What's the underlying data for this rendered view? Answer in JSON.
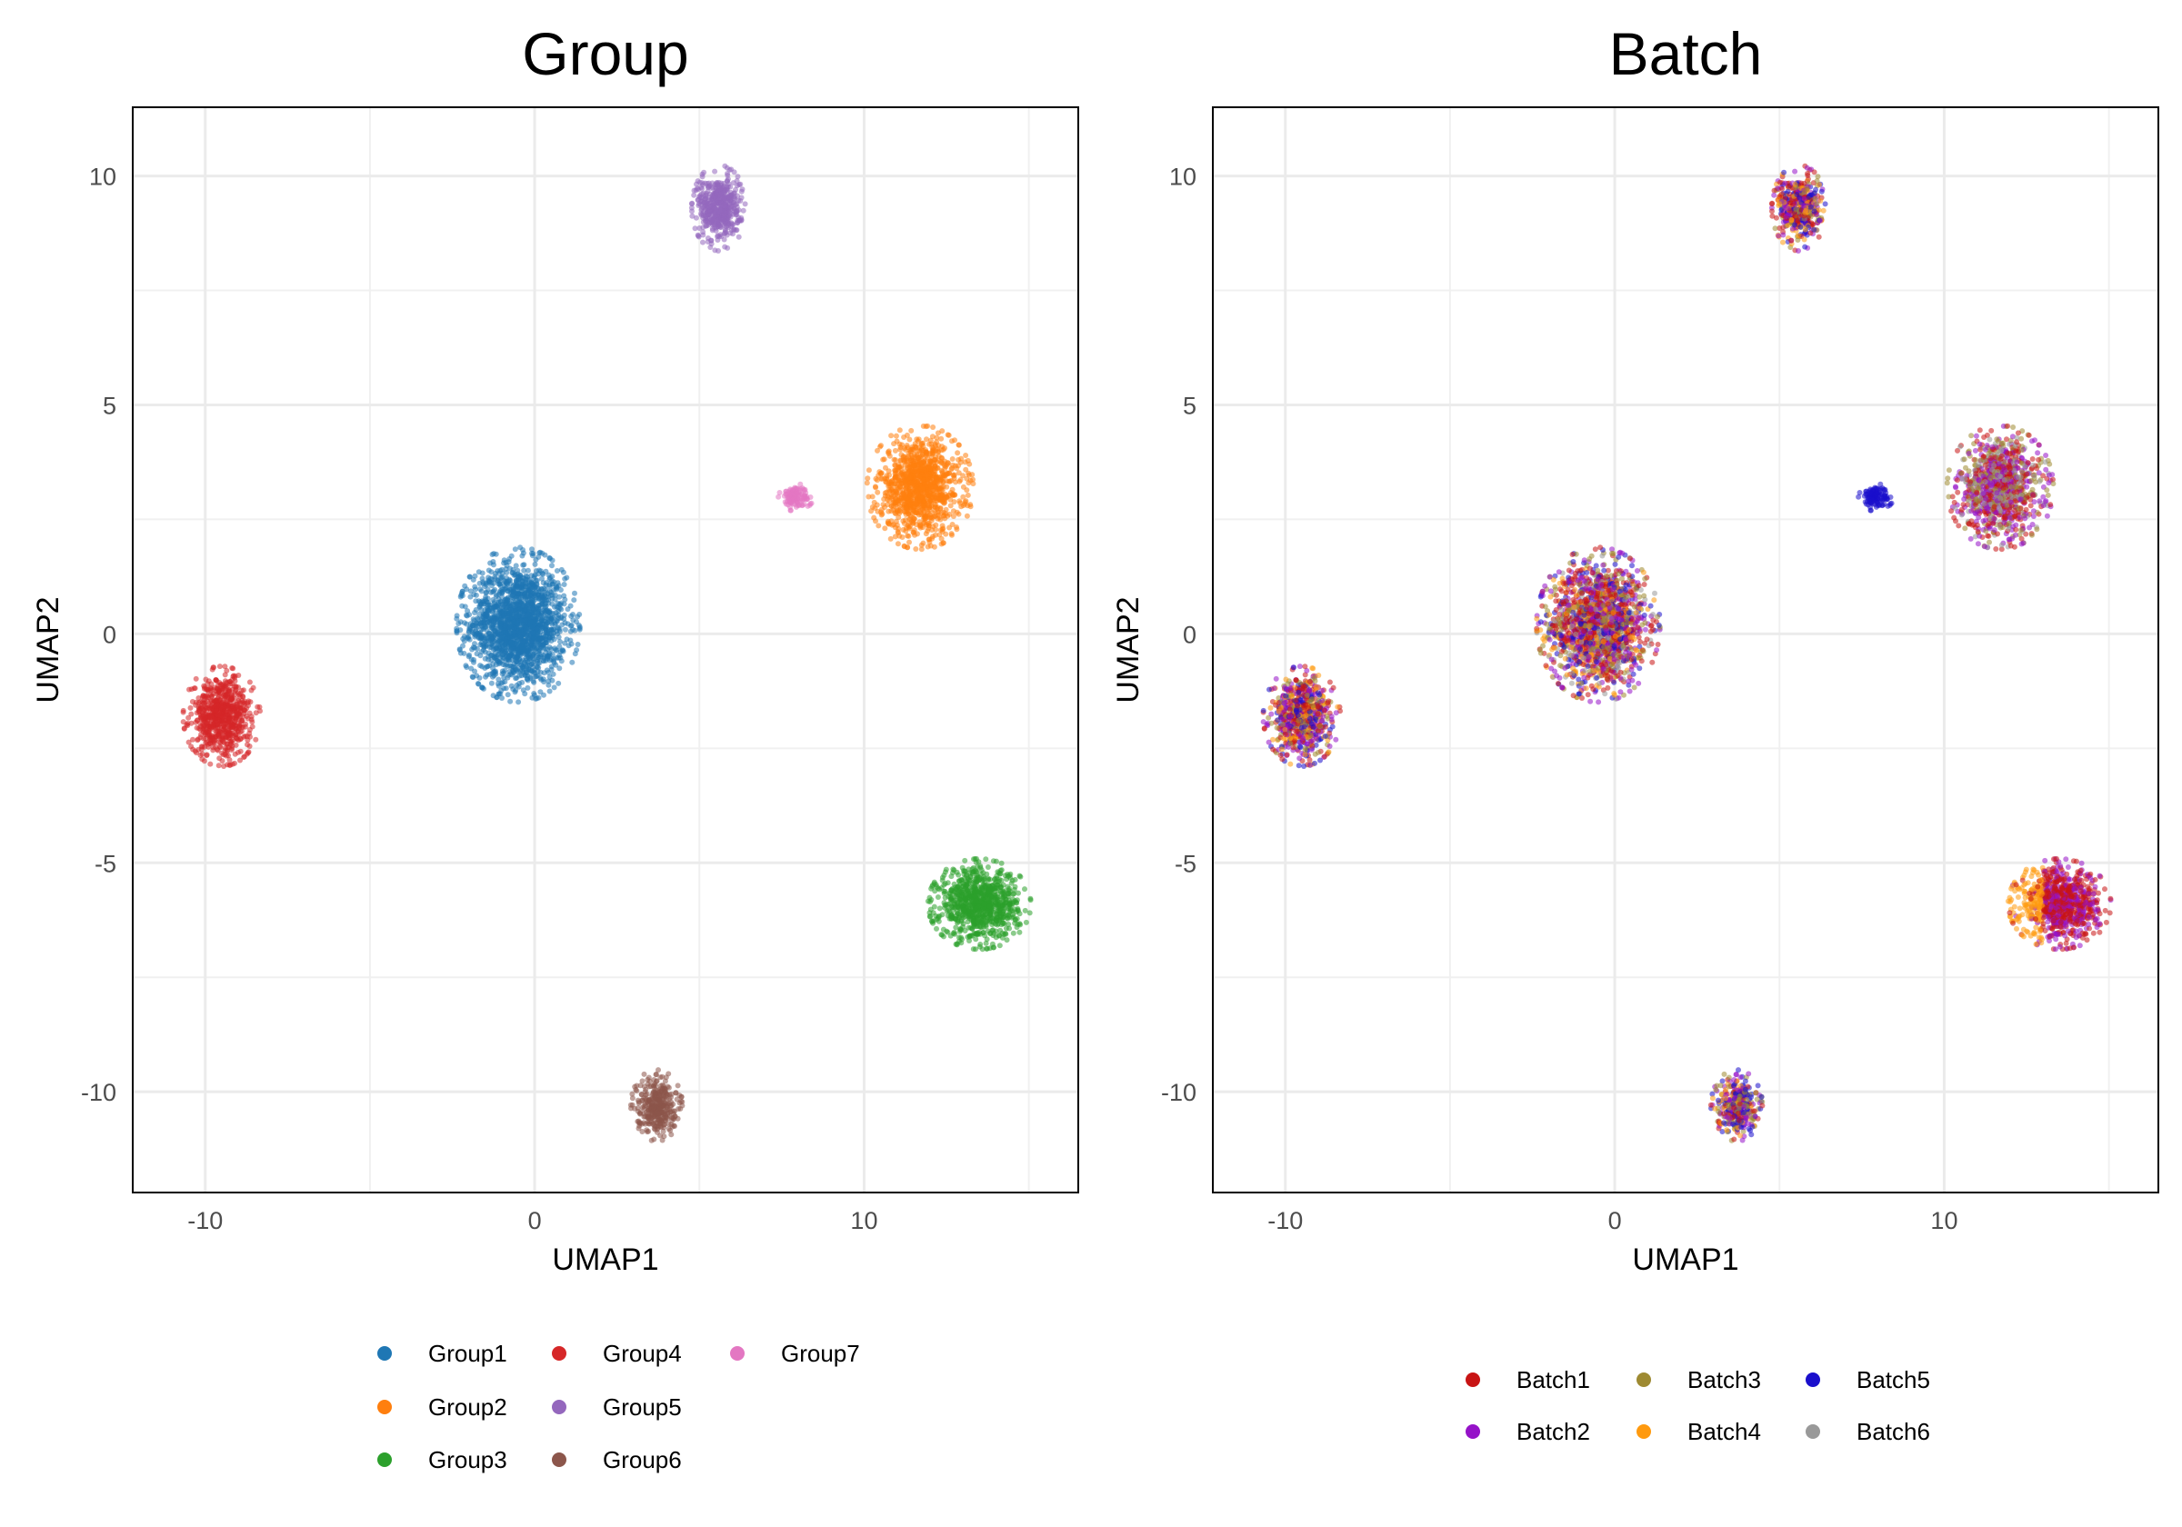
{
  "chart_data": [
    {
      "type": "scatter",
      "title": "Group",
      "xlabel": "UMAP1",
      "ylabel": "UMAP2",
      "xlim": [
        -12.2,
        16.5
      ],
      "ylim": [
        -12.2,
        11.5
      ],
      "xticks": [
        -10,
        0,
        10
      ],
      "yticks": [
        -10,
        -5,
        0,
        5,
        10
      ],
      "grid": true,
      "legend_position": "bottom",
      "legend": [
        {
          "name": "Group1",
          "color": "#1F77B4"
        },
        {
          "name": "Group2",
          "color": "#FF7F0E"
        },
        {
          "name": "Group3",
          "color": "#2CA02C"
        },
        {
          "name": "Group4",
          "color": "#D62728"
        },
        {
          "name": "Group5",
          "color": "#9467BD"
        },
        {
          "name": "Group6",
          "color": "#8C564B"
        },
        {
          "name": "Group7",
          "color": "#E377C2"
        }
      ],
      "clusters": [
        {
          "group": "Group1",
          "center": [
            -0.5,
            0.2
          ],
          "sd": [
            0.72,
            0.65
          ],
          "n": 1800
        },
        {
          "group": "Group2",
          "center": [
            11.7,
            3.2
          ],
          "sd": [
            0.62,
            0.52
          ],
          "n": 1100
        },
        {
          "group": "Group3",
          "center": [
            13.5,
            -5.9
          ],
          "sd": [
            0.6,
            0.38
          ],
          "n": 900
        },
        {
          "group": "Group4",
          "center": [
            -9.5,
            -1.8
          ],
          "sd": [
            0.45,
            0.42
          ],
          "n": 700
        },
        {
          "group": "Group5",
          "center": [
            5.6,
            9.3
          ],
          "sd": [
            0.32,
            0.36
          ],
          "n": 500
        },
        {
          "group": "Group6",
          "center": [
            3.7,
            -10.3
          ],
          "sd": [
            0.3,
            0.3
          ],
          "n": 350
        },
        {
          "group": "Group7",
          "center": [
            7.9,
            3.0
          ],
          "sd": [
            0.22,
            0.12
          ],
          "n": 120
        }
      ]
    },
    {
      "type": "scatter",
      "title": "Batch",
      "xlabel": "UMAP1",
      "ylabel": "UMAP2",
      "xlim": [
        -12.2,
        16.5
      ],
      "ylim": [
        -12.2,
        11.5
      ],
      "xticks": [
        -10,
        0,
        10
      ],
      "yticks": [
        -10,
        -5,
        0,
        5,
        10
      ],
      "grid": true,
      "legend_position": "bottom",
      "legend": [
        {
          "name": "Batch1",
          "color": "#C81414"
        },
        {
          "name": "Batch2",
          "color": "#9512C8"
        },
        {
          "name": "Batch3",
          "color": "#9E8A32"
        },
        {
          "name": "Batch4",
          "color": "#FF9A0F"
        },
        {
          "name": "Batch5",
          "color": "#1A0FCC"
        },
        {
          "name": "Batch6",
          "color": "#999999"
        }
      ],
      "cluster_batch_mix": {
        "Group1": [
          0.3,
          0.2,
          0.15,
          0.1,
          0.15,
          0.1
        ],
        "Group2": [
          0.3,
          0.3,
          0.2,
          0.0,
          0.0,
          0.2
        ],
        "Group3": [
          0.45,
          0.35,
          0.0,
          0.2,
          0.0,
          0.0
        ],
        "Group4": [
          0.25,
          0.25,
          0.15,
          0.15,
          0.2,
          0.0
        ],
        "Group5": [
          0.25,
          0.2,
          0.15,
          0.2,
          0.2,
          0.0
        ],
        "Group6": [
          0.15,
          0.2,
          0.2,
          0.15,
          0.3,
          0.0
        ],
        "Group7": [
          0.0,
          0.0,
          0.0,
          0.0,
          1.0,
          0.0
        ]
      }
    }
  ]
}
